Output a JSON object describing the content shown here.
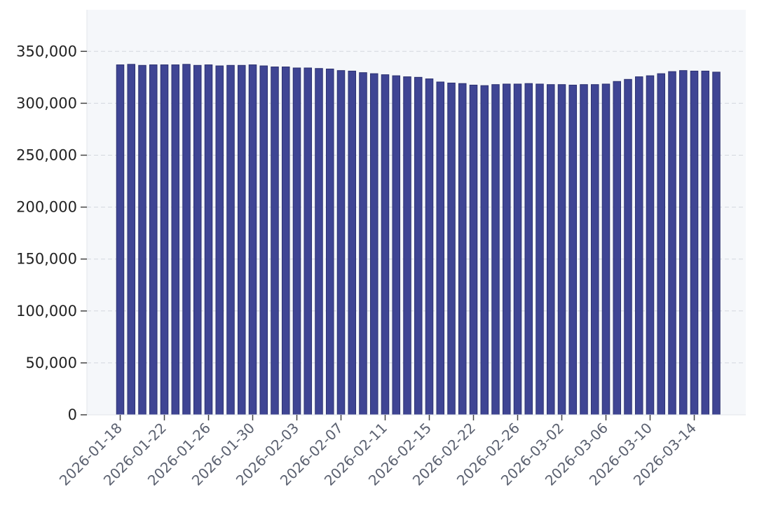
{
  "chart_data": {
    "type": "bar",
    "title": "",
    "xlabel": "",
    "ylabel": "",
    "ylim": [
      0,
      390000
    ],
    "y_ticks": [
      0,
      50000,
      100000,
      150000,
      200000,
      250000,
      300000,
      350000
    ],
    "y_tick_labels": [
      "0",
      "50,000",
      "100,000",
      "150,000",
      "200,000",
      "250,000",
      "300,000",
      "350,000"
    ],
    "x_tick_labels": [
      "2026-01-18",
      "2026-01-22",
      "2026-01-26",
      "2026-01-30",
      "2026-02-03",
      "2026-02-07",
      "2026-02-11",
      "2026-02-15",
      "2026-02-22",
      "2026-02-26",
      "2026-03-02",
      "2026-03-06",
      "2026-03-10",
      "2026-03-14"
    ],
    "x_tick_bar_index": [
      0,
      4,
      8,
      12,
      16,
      20,
      24,
      28,
      32,
      36,
      40,
      44,
      48,
      52
    ],
    "grid": "y dashed",
    "colors": {
      "bar": "#3f4594",
      "bar_edge": "#2c3170",
      "plot_bg": "#f5f7fa",
      "grid": "#d4d7de"
    },
    "values": [
      337000,
      337500,
      336500,
      337000,
      337000,
      337000,
      337500,
      336500,
      337000,
      336000,
      336500,
      336500,
      337000,
      336000,
      335000,
      335000,
      334000,
      334000,
      333500,
      333000,
      331500,
      331000,
      329500,
      328500,
      327500,
      326500,
      325500,
      325000,
      323500,
      320500,
      319500,
      319000,
      317500,
      317000,
      318000,
      318500,
      318500,
      319000,
      318500,
      318000,
      318000,
      317500,
      318000,
      318000,
      318500,
      321000,
      323000,
      325500,
      326500,
      328500,
      330500,
      331500,
      331000,
      331000,
      330000
    ]
  }
}
